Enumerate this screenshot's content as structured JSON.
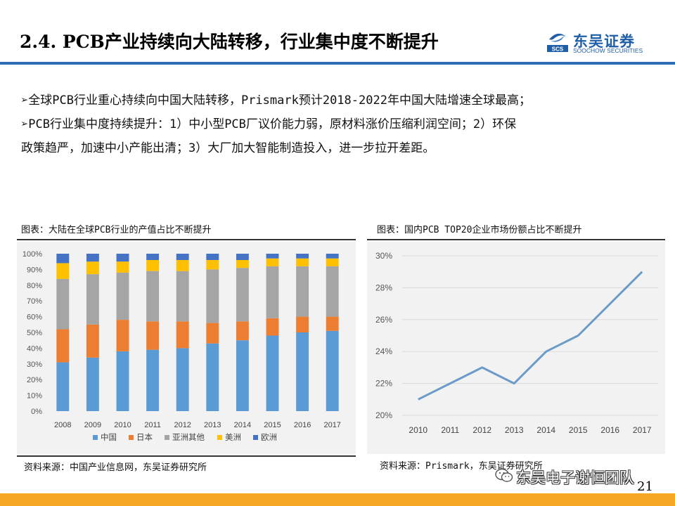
{
  "slide": {
    "title": "2.4. PCB产业持续向大陆转移，行业集中度不断提升",
    "page_number": "21"
  },
  "logo": {
    "name_cn": "东吴证券",
    "name_en": "SOOCHOW SECURITIES",
    "mark_text": "SCS",
    "icon": "soochow-logo-icon"
  },
  "bullets": [
    {
      "marker": "➢",
      "lines": [
        "全球PCB行业重心持续向中国大陆转移，Prismark预计2018-2022年中国大陆增速全球最高；"
      ]
    },
    {
      "marker": "➢",
      "lines": [
        "PCB行业集中度持续提升：1）中小型PCB厂议价能力弱，原材料涨价压缩利润空间；2）环保",
        "政策趋严，加速中小产能出清；3）大厂加大智能制造投入，进一步拉开差距。"
      ]
    }
  ],
  "left_figure": {
    "caption": "图表：大陆在全球PCB行业的产值占比不断提升",
    "source": "资料来源：中国产业信息网，东吴证券研究所"
  },
  "right_figure": {
    "caption": "图表：国内PCB TOP20企业市场份额占比不断提升",
    "source": "资料来源：Prismark，东吴证券研究所"
  },
  "watermark": {
    "text": "东吴电子谢恒团队",
    "icon": "wechat-icon"
  },
  "chart_data": [
    {
      "type": "bar",
      "stacked": true,
      "categories": [
        "2008",
        "2009",
        "2010",
        "2011",
        "2012",
        "2013",
        "2014",
        "2015",
        "2016",
        "2017"
      ],
      "series": [
        {
          "name": "中国",
          "color": "#5b9bd5",
          "values": [
            31,
            34,
            38,
            39,
            40,
            43,
            45,
            48,
            50,
            51
          ]
        },
        {
          "name": "日本",
          "color": "#ed7d31",
          "values": [
            21,
            21,
            20,
            18,
            17,
            13,
            12,
            11,
            10,
            9
          ]
        },
        {
          "name": "亚洲其他",
          "color": "#a5a5a5",
          "values": [
            32,
            32,
            30,
            32,
            32,
            34,
            34,
            33,
            32,
            32
          ]
        },
        {
          "name": "美洲",
          "color": "#ffc000",
          "values": [
            10,
            8,
            7,
            7,
            7,
            6,
            5,
            5,
            5,
            5
          ]
        },
        {
          "name": "欧洲",
          "color": "#4472c4",
          "values": [
            6,
            5,
            5,
            4,
            4,
            4,
            4,
            3,
            3,
            3
          ]
        }
      ],
      "yticks": [
        "0%",
        "10%",
        "20%",
        "30%",
        "40%",
        "50%",
        "60%",
        "70%",
        "80%",
        "90%",
        "100%"
      ],
      "ylim": [
        0,
        100
      ],
      "grid": false,
      "legend": "bottom"
    },
    {
      "type": "line",
      "x": [
        "2010",
        "2011",
        "2012",
        "2013",
        "2014",
        "2015",
        "2016",
        "2017"
      ],
      "series": [
        {
          "color": "#6b9bc9",
          "values": [
            21,
            22,
            23,
            22,
            24,
            25,
            27,
            29
          ]
        }
      ],
      "yticks": [
        "20%",
        "22%",
        "24%",
        "26%",
        "28%",
        "30%"
      ],
      "ylim": [
        20,
        30
      ],
      "grid": true,
      "legend": "none"
    }
  ]
}
